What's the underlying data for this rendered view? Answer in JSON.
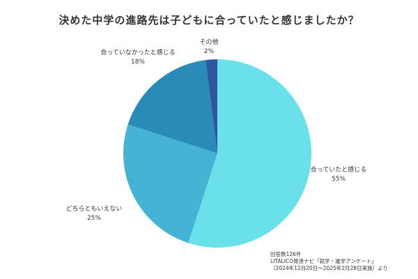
{
  "chart_data": {
    "type": "pie",
    "title": "決めた中学の進路先は子どもに合っていたと感じましたか？",
    "slices": [
      {
        "label": "合っていたと感じる",
        "value": 55,
        "value_label": "55%",
        "color": "#6ae1ea"
      },
      {
        "label": "どちらともいえない",
        "value": 25,
        "value_label": "25%",
        "color": "#45b4d4"
      },
      {
        "label": "合っていなかったと感じる",
        "value": 18,
        "value_label": "18%",
        "color": "#2b8bb8"
      },
      {
        "label": "その他",
        "value": 2,
        "value_label": "2%",
        "color": "#2f579e"
      }
    ],
    "start": "top",
    "direction": "clockwise"
  },
  "source": {
    "line1": "回答数126件",
    "line2": "LITALICO発達ナビ「就学・進学アンケート」",
    "line3": "（2024年12月20日～2025年2月28日実施）より"
  }
}
